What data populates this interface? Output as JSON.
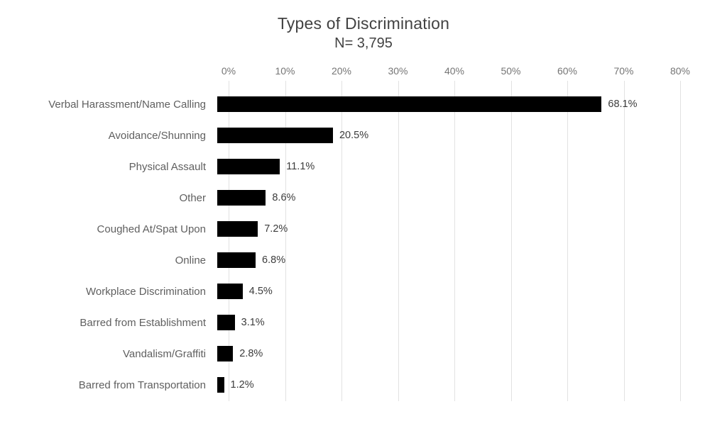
{
  "chart_data": {
    "type": "bar",
    "orientation": "horizontal",
    "title": "Types of Discrimination",
    "subtitle": "N= 3,795",
    "categories": [
      "Verbal Harassment/Name Calling",
      "Avoidance/Shunning",
      "Physical Assault",
      "Other",
      "Coughed At/Spat Upon",
      "Online",
      "Workplace Discrimination",
      "Barred from Establishment",
      "Vandalism/Graffiti",
      "Barred from Transportation"
    ],
    "values": [
      68.1,
      20.5,
      11.1,
      8.6,
      7.2,
      6.8,
      4.5,
      3.1,
      2.8,
      1.2
    ],
    "value_labels": [
      "68.1%",
      "20.5%",
      "11.1%",
      "8.6%",
      "7.2%",
      "6.8%",
      "4.5%",
      "3.1%",
      "2.8%",
      "1.2%"
    ],
    "x_ticks": [
      "0%",
      "10%",
      "20%",
      "30%",
      "40%",
      "50%",
      "60%",
      "70%",
      "80%"
    ],
    "xlim": [
      0,
      80
    ],
    "grid": "vertical-only",
    "legend": "none",
    "colors": {
      "bar": "#000000",
      "gridline": "#e2e2e2",
      "title_text": "#424242",
      "axis_tick_text": "#757575",
      "category_text": "#5f5f5f",
      "value_text": "#3c3c3c",
      "background": "#ffffff"
    }
  }
}
